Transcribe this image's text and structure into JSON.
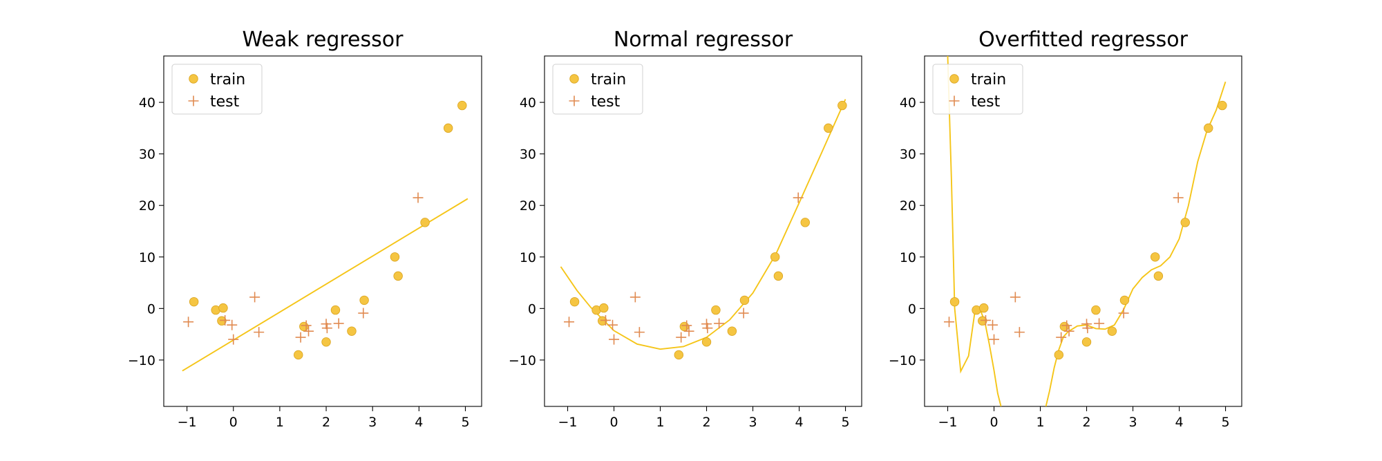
{
  "colors": {
    "curve": "#f5c518",
    "train": "#f5c542",
    "train_edge": "#d9a21b",
    "test": "#e08a50"
  },
  "chart_data": [
    {
      "type": "scatter",
      "title": "Weak regressor",
      "xlim": [
        -1.5,
        5.35
      ],
      "ylim": [
        -19,
        49
      ],
      "xticks": [
        -1,
        0,
        1,
        2,
        3,
        4,
        5
      ],
      "xtick_labels": [
        "−1",
        "0",
        "1",
        "2",
        "3",
        "4",
        "5"
      ],
      "yticks": [
        -10,
        0,
        10,
        20,
        30,
        40
      ],
      "ytick_labels": [
        "−10",
        "0",
        "10",
        "20",
        "30",
        "40"
      ],
      "grid": false,
      "legend": {
        "position": "top-left",
        "entries": [
          "train",
          "test"
        ]
      },
      "series": [
        {
          "name": "train",
          "kind": "points",
          "x": [
            -0.85,
            -0.38,
            -0.25,
            -0.22,
            1.4,
            1.52,
            2.0,
            2.2,
            2.55,
            2.82,
            3.48,
            3.55,
            4.13,
            4.63,
            4.93
          ],
          "y": [
            1.3,
            -0.3,
            -2.4,
            0.1,
            -9.0,
            -3.5,
            -6.5,
            -0.3,
            -4.4,
            1.6,
            10.0,
            6.3,
            16.7,
            35.0,
            39.4
          ]
        },
        {
          "name": "test",
          "kind": "points",
          "x": [
            -0.97,
            -0.18,
            -0.03,
            0.0,
            0.46,
            0.55,
            1.45,
            1.57,
            1.62,
            2.0,
            2.02,
            2.27,
            2.8,
            3.98
          ],
          "y": [
            -2.6,
            -2.3,
            -3.2,
            -6.0,
            2.2,
            -4.6,
            -5.6,
            -3.3,
            -4.4,
            -3.0,
            -3.8,
            -2.9,
            -0.9,
            21.5
          ]
        },
        {
          "kind": "curve",
          "x": [
            -1.1,
            5.05
          ],
          "y": [
            -12.1,
            21.3
          ]
        }
      ]
    },
    {
      "type": "scatter",
      "title": "Normal regressor",
      "xlim": [
        -1.5,
        5.35
      ],
      "ylim": [
        -19,
        49
      ],
      "xticks": [
        -1,
        0,
        1,
        2,
        3,
        4,
        5
      ],
      "xtick_labels": [
        "−1",
        "0",
        "1",
        "2",
        "3",
        "4",
        "5"
      ],
      "yticks": [
        -10,
        0,
        10,
        20,
        30,
        40
      ],
      "ytick_labels": [
        "−10",
        "0",
        "10",
        "20",
        "30",
        "40"
      ],
      "grid": false,
      "legend": {
        "position": "top-left",
        "entries": [
          "train",
          "test"
        ]
      },
      "series": [
        {
          "name": "train",
          "kind": "points",
          "x": [
            -0.85,
            -0.38,
            -0.25,
            -0.22,
            1.4,
            1.52,
            2.0,
            2.2,
            2.55,
            2.82,
            3.48,
            3.55,
            4.13,
            4.63,
            4.93
          ],
          "y": [
            1.3,
            -0.3,
            -2.4,
            0.1,
            -9.0,
            -3.5,
            -6.5,
            -0.3,
            -4.4,
            1.6,
            10.0,
            6.3,
            16.7,
            35.0,
            39.4
          ]
        },
        {
          "name": "test",
          "kind": "points",
          "x": [
            -0.97,
            -0.18,
            -0.03,
            0.0,
            0.46,
            0.55,
            1.45,
            1.57,
            1.62,
            2.0,
            2.02,
            2.27,
            2.8,
            3.98
          ],
          "y": [
            -2.6,
            -2.3,
            -3.2,
            -6.0,
            2.2,
            -4.6,
            -5.6,
            -3.3,
            -4.4,
            -3.0,
            -3.8,
            -2.9,
            -0.9,
            21.5
          ]
        },
        {
          "kind": "curve",
          "x": [
            -1.15,
            -0.8,
            -0.5,
            0.0,
            0.5,
            1.0,
            1.5,
            2.0,
            2.5,
            3.0,
            3.5,
            4.0,
            4.5,
            5.0
          ],
          "y": [
            8.1,
            3.5,
            0.2,
            -4.3,
            -6.9,
            -7.9,
            -7.4,
            -5.6,
            -2.2,
            3.0,
            10.6,
            20.5,
            30.5,
            40.6
          ]
        }
      ]
    },
    {
      "type": "scatter",
      "title": "Overfitted regressor",
      "xlim": [
        -1.5,
        5.35
      ],
      "ylim": [
        -19,
        49
      ],
      "xticks": [
        -1,
        0,
        1,
        2,
        3,
        4,
        5
      ],
      "xtick_labels": [
        "−1",
        "0",
        "1",
        "2",
        "3",
        "4",
        "5"
      ],
      "yticks": [
        -10,
        0,
        10,
        20,
        30,
        40
      ],
      "ytick_labels": [
        "−10",
        "0",
        "10",
        "20",
        "30",
        "40"
      ],
      "grid": false,
      "legend": {
        "position": "top-left",
        "entries": [
          "train",
          "test"
        ]
      },
      "series": [
        {
          "name": "train",
          "kind": "points",
          "x": [
            -0.85,
            -0.38,
            -0.25,
            -0.22,
            1.4,
            1.52,
            2.0,
            2.2,
            2.55,
            2.82,
            3.48,
            3.55,
            4.13,
            4.63,
            4.93
          ],
          "y": [
            1.3,
            -0.3,
            -2.4,
            0.1,
            -9.0,
            -3.5,
            -6.5,
            -0.3,
            -4.4,
            1.6,
            10.0,
            6.3,
            16.7,
            35.0,
            39.4
          ]
        },
        {
          "name": "test",
          "kind": "points",
          "x": [
            -0.97,
            -0.18,
            -0.03,
            0.0,
            0.46,
            0.55,
            1.45,
            1.57,
            1.62,
            2.0,
            2.02,
            2.27,
            2.8,
            3.98
          ],
          "y": [
            -2.6,
            -2.3,
            -3.2,
            -6.0,
            2.2,
            -4.6,
            -5.6,
            -3.3,
            -4.4,
            -3.0,
            -3.8,
            -2.9,
            -0.9,
            21.5
          ]
        },
        {
          "kind": "curve",
          "x": [
            -1.0,
            -0.92,
            -0.85,
            -0.72,
            -0.55,
            -0.42,
            -0.3,
            -0.2,
            -0.1,
            0.0,
            0.08,
            0.15
          ],
          "y": [
            49,
            25,
            0,
            -12.2,
            -9.2,
            -1.0,
            -0.2,
            -2.5,
            -7.0,
            -12.0,
            -16.5,
            -19.0
          ]
        },
        {
          "kind": "curve",
          "x": [
            1.12,
            1.2,
            1.3,
            1.4,
            1.5,
            1.6,
            1.8,
            2.0,
            2.2,
            2.4,
            2.6,
            2.8,
            3.0,
            3.2,
            3.4,
            3.6,
            3.8,
            4.0,
            4.2,
            4.4,
            4.6,
            4.8,
            5.0
          ],
          "y": [
            -19.0,
            -16.0,
            -11.5,
            -8.0,
            -5.5,
            -4.5,
            -3.4,
            -3.2,
            -3.9,
            -4.0,
            -3.2,
            -0.2,
            3.8,
            6.0,
            7.5,
            8.3,
            10.0,
            13.5,
            20.0,
            28.5,
            34.5,
            38.5,
            44.0
          ]
        }
      ]
    }
  ]
}
